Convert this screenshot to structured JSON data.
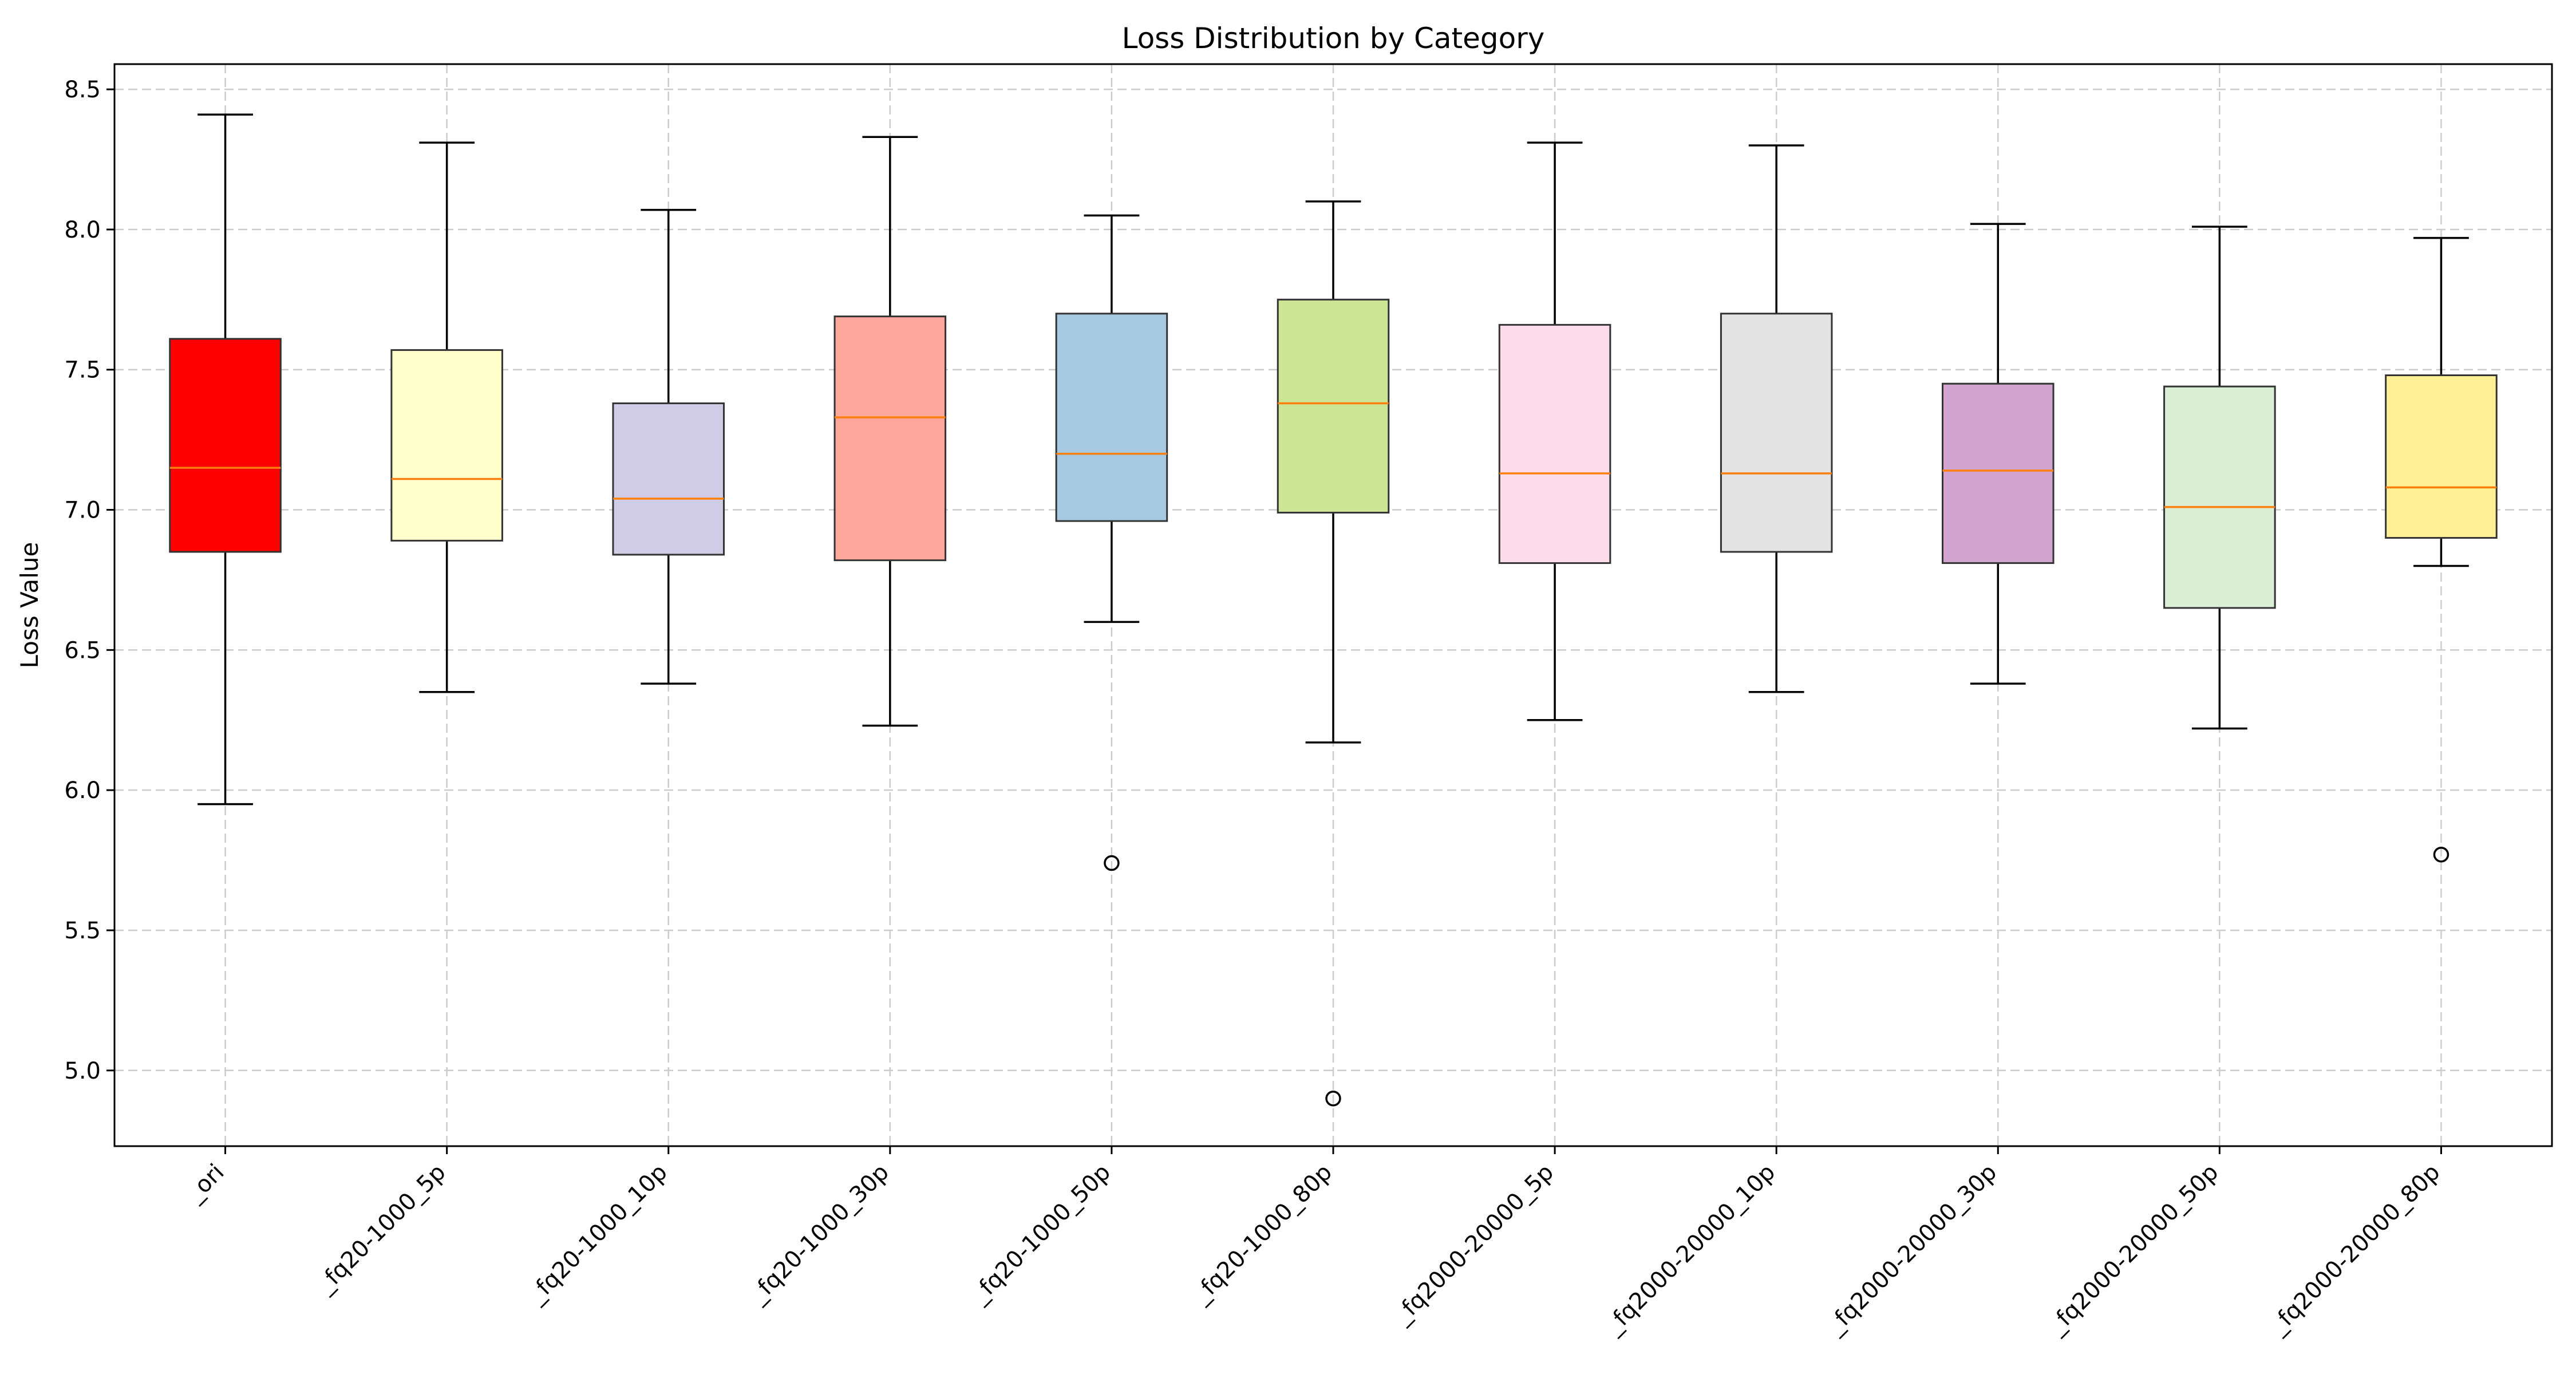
{
  "chart_data": {
    "type": "box",
    "title": "Loss Distribution by Category",
    "xlabel": "",
    "ylabel": "Loss Value",
    "ylim": [
      4.73,
      8.59
    ],
    "yticks": [
      "5.0",
      "5.5",
      "6.0",
      "6.5",
      "7.0",
      "7.5",
      "8.0",
      "8.5"
    ],
    "ytick_values": [
      5.0,
      5.5,
      6.0,
      6.5,
      7.0,
      7.5,
      8.0,
      8.5
    ],
    "grid": true,
    "categories": [
      "_ori",
      "_fq20-1000_5p",
      "_fq20-1000_10p",
      "_fq20-1000_30p",
      "_fq20-1000_50p",
      "_fq20-1000_80p",
      "_fq2000-20000_5p",
      "_fq2000-20000_10p",
      "_fq2000-20000_30p",
      "_fq2000-20000_50p",
      "_fq2000-20000_80p"
    ],
    "boxes": [
      {
        "whisker_low": 5.95,
        "q1": 6.85,
        "median": 7.15,
        "q3": 7.61,
        "whisker_high": 8.41,
        "outliers": [],
        "color": "#ff0000"
      },
      {
        "whisker_low": 6.35,
        "q1": 6.89,
        "median": 7.11,
        "q3": 7.57,
        "whisker_high": 8.31,
        "outliers": [],
        "color": "#ffffcc"
      },
      {
        "whisker_low": 6.38,
        "q1": 6.84,
        "median": 7.04,
        "q3": 7.38,
        "whisker_high": 8.07,
        "outliers": [],
        "color": "#d1cce6"
      },
      {
        "whisker_low": 6.23,
        "q1": 6.82,
        "median": 7.33,
        "q3": 7.69,
        "whisker_high": 8.33,
        "outliers": [],
        "color": "#fca69c"
      },
      {
        "whisker_low": 6.6,
        "q1": 6.96,
        "median": 7.2,
        "q3": 7.7,
        "whisker_high": 8.05,
        "outliers": [
          5.74
        ],
        "color": "#a6c8e0"
      },
      {
        "whisker_low": 6.17,
        "q1": 6.99,
        "median": 7.38,
        "q3": 7.75,
        "whisker_high": 8.1,
        "outliers": [
          4.9
        ],
        "color": "#cce695"
      },
      {
        "whisker_low": 6.25,
        "q1": 6.81,
        "median": 7.13,
        "q3": 7.66,
        "whisker_high": 8.31,
        "outliers": [],
        "color": "#fcdbeb"
      },
      {
        "whisker_low": 6.35,
        "q1": 6.85,
        "median": 7.13,
        "q3": 7.7,
        "whisker_high": 8.3,
        "outliers": [],
        "color": "#e3e3e3"
      },
      {
        "whisker_low": 6.38,
        "q1": 6.81,
        "median": 7.14,
        "q3": 7.45,
        "whisker_high": 8.02,
        "outliers": [],
        "color": "#d0a4cf"
      },
      {
        "whisker_low": 6.22,
        "q1": 6.65,
        "median": 7.01,
        "q3": 7.44,
        "whisker_high": 8.01,
        "outliers": [],
        "color": "#daefd6"
      },
      {
        "whisker_low": 6.8,
        "q1": 6.9,
        "median": 7.08,
        "q3": 7.48,
        "whisker_high": 7.97,
        "outliers": [
          5.77
        ],
        "color": "#fff096"
      }
    ],
    "median_color": "#ff7f0e",
    "grid_color": "#cccccc"
  }
}
